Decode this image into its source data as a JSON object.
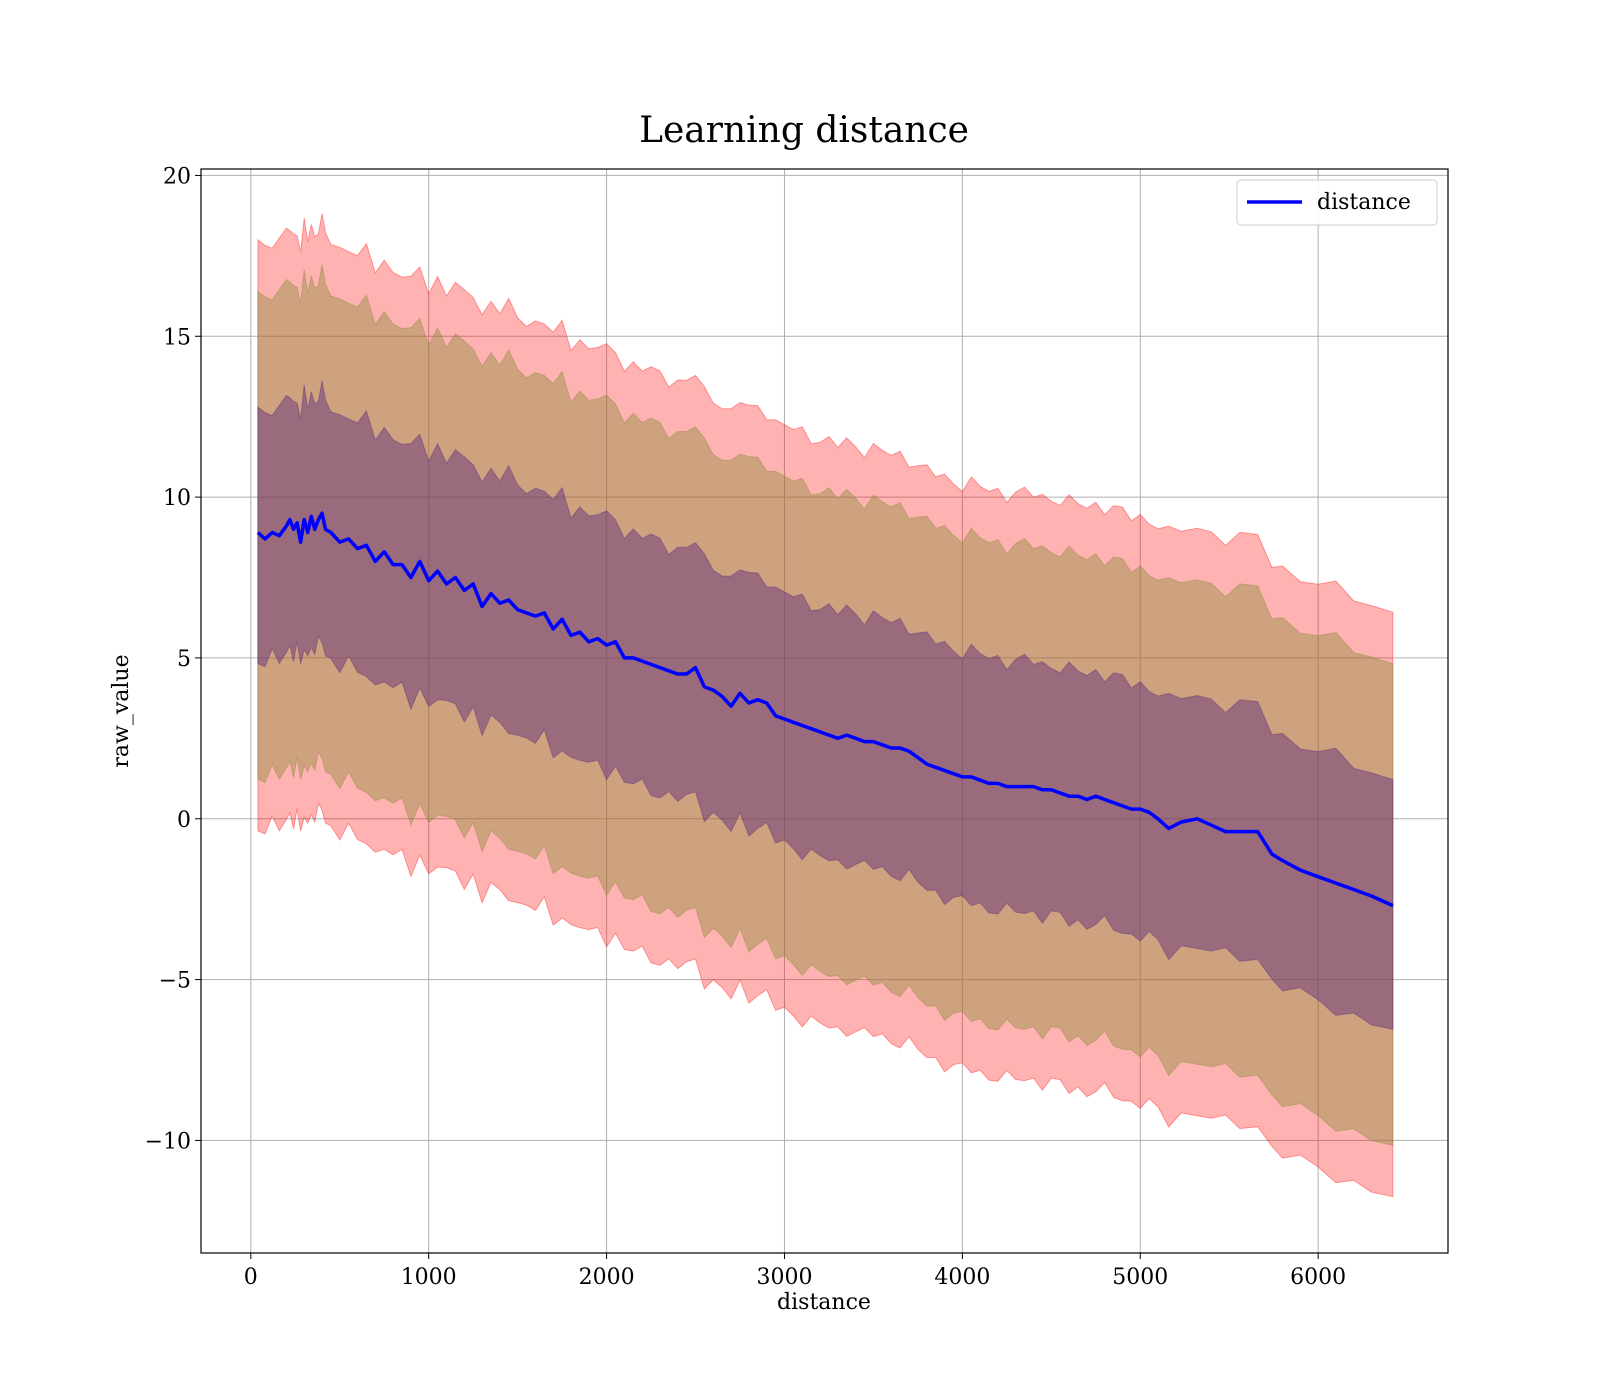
{
  "chart_data": {
    "type": "line",
    "title": "Learning distance",
    "xlabel": "distance",
    "ylabel": "raw_value",
    "xlim": [
      -280,
      6730
    ],
    "ylim": [
      -13.5,
      20.2
    ],
    "xticks": [
      0,
      1000,
      2000,
      3000,
      4000,
      5000,
      6000
    ],
    "yticks": [
      -10,
      -5,
      0,
      5,
      10,
      15,
      20
    ],
    "xtick_labels": [
      "0",
      "1000",
      "2000",
      "3000",
      "4000",
      "5000",
      "6000"
    ],
    "ytick_labels": [
      "−10",
      "−5",
      "0",
      "5",
      "10",
      "15",
      "20"
    ],
    "grid": true,
    "legend": {
      "position": "top-right",
      "entries": [
        "distance"
      ]
    },
    "colors": {
      "line": "#0000ff",
      "band_outer": "#ff0000",
      "band_middle": "#8b8b3a",
      "band_inner": "#5a2a7a",
      "grid": "#b0b0b0",
      "axis": "#000000"
    },
    "band_half_widths": [
      3.9,
      7.5,
      9.1
    ],
    "series": [
      {
        "name": "distance",
        "x": [
          40,
          80,
          120,
          160,
          200,
          220,
          240,
          260,
          280,
          300,
          320,
          340,
          360,
          380,
          400,
          420,
          450,
          500,
          550,
          600,
          650,
          700,
          750,
          800,
          850,
          900,
          950,
          1000,
          1050,
          1100,
          1150,
          1200,
          1250,
          1300,
          1350,
          1400,
          1450,
          1500,
          1550,
          1600,
          1650,
          1700,
          1750,
          1800,
          1850,
          1900,
          1950,
          2000,
          2050,
          2100,
          2150,
          2200,
          2250,
          2300,
          2350,
          2400,
          2450,
          2500,
          2550,
          2600,
          2650,
          2700,
          2750,
          2800,
          2850,
          2900,
          2950,
          3000,
          3050,
          3100,
          3150,
          3200,
          3250,
          3300,
          3350,
          3400,
          3450,
          3500,
          3550,
          3600,
          3650,
          3700,
          3750,
          3800,
          3850,
          3900,
          3950,
          4000,
          4050,
          4100,
          4150,
          4200,
          4250,
          4300,
          4350,
          4400,
          4450,
          4500,
          4550,
          4600,
          4650,
          4700,
          4750,
          4800,
          4850,
          4900,
          4950,
          5000,
          5050,
          5100,
          5160,
          5230,
          5320,
          5400,
          5480,
          5560,
          5660,
          5740,
          5800,
          5900,
          6000,
          6100,
          6200,
          6300,
          6420
        ],
        "y": [
          8.9,
          8.7,
          8.9,
          8.8,
          9.1,
          9.3,
          9.0,
          9.2,
          8.6,
          9.3,
          8.9,
          9.4,
          9.0,
          9.3,
          9.5,
          9.0,
          8.9,
          8.6,
          8.7,
          8.4,
          8.5,
          8.0,
          8.3,
          7.9,
          7.9,
          7.5,
          8.0,
          7.4,
          7.7,
          7.3,
          7.5,
          7.1,
          7.3,
          6.6,
          7.0,
          6.7,
          6.8,
          6.5,
          6.4,
          6.3,
          6.4,
          5.9,
          6.2,
          5.7,
          5.8,
          5.5,
          5.6,
          5.4,
          5.5,
          5.0,
          5.0,
          4.9,
          4.8,
          4.7,
          4.6,
          4.5,
          4.5,
          4.7,
          4.1,
          4.0,
          3.8,
          3.5,
          3.9,
          3.6,
          3.7,
          3.6,
          3.2,
          3.1,
          3.0,
          2.9,
          2.8,
          2.7,
          2.6,
          2.5,
          2.6,
          2.5,
          2.4,
          2.4,
          2.3,
          2.2,
          2.2,
          2.1,
          1.9,
          1.7,
          1.6,
          1.5,
          1.4,
          1.3,
          1.3,
          1.2,
          1.1,
          1.1,
          1.0,
          1.0,
          1.0,
          1.0,
          0.9,
          0.9,
          0.8,
          0.7,
          0.7,
          0.6,
          0.7,
          0.6,
          0.5,
          0.4,
          0.3,
          0.3,
          0.2,
          0.0,
          -0.3,
          -0.1,
          0.0,
          -0.2,
          -0.4,
          -0.4,
          -0.4,
          -1.1,
          -1.3,
          -1.6,
          -1.8,
          -2.0,
          -2.2,
          -2.4,
          -2.7
        ]
      }
    ]
  }
}
